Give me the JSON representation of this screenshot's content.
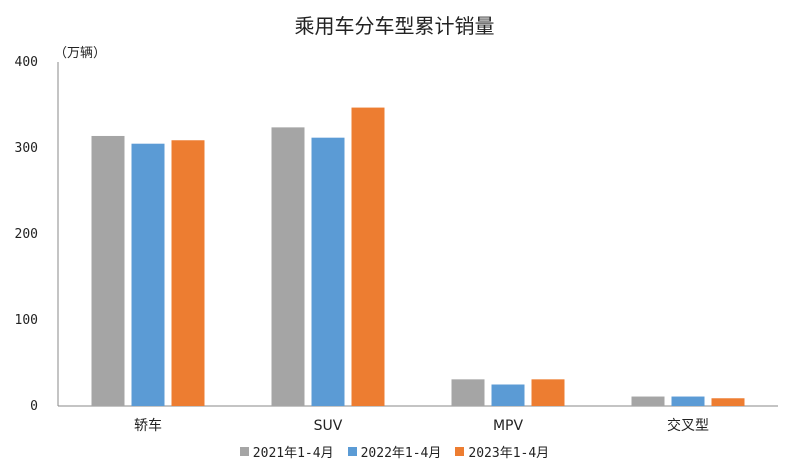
{
  "chart_data": {
    "type": "bar",
    "title": "乘用车分车型累计销量",
    "unit_label": "（万辆）",
    "categories": [
      "轿车",
      "SUV",
      "MPV",
      "交叉型"
    ],
    "series": [
      {
        "name": "2021年1-4月",
        "color": "#A5A5A5",
        "values": [
          314,
          324,
          31,
          11
        ]
      },
      {
        "name": "2022年1-4月",
        "color": "#5B9BD5",
        "values": [
          305,
          312,
          25,
          11
        ]
      },
      {
        "name": "2023年1-4月",
        "color": "#ED7D31",
        "values": [
          309,
          347,
          31,
          9
        ]
      }
    ],
    "ylim": [
      0,
      400
    ],
    "yticks": [
      0,
      100,
      200,
      300,
      400
    ],
    "grid": false,
    "legend_position": "bottom"
  }
}
